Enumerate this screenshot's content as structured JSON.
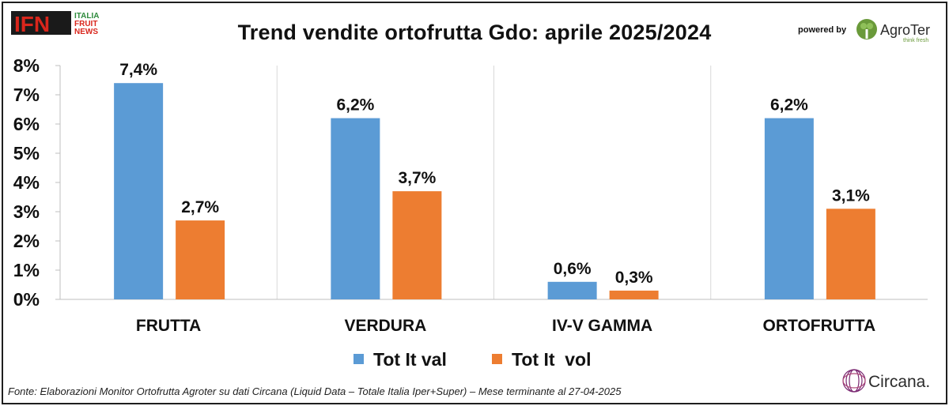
{
  "header": {
    "title": "Trend vendite ortofrutta Gdo: aprile 2025/2024",
    "powered_by": "powered by",
    "ifn_logo": {
      "letters": "IFN",
      "lines": [
        "ITALIA",
        "FRUIT",
        "NEWS"
      ]
    },
    "agroter_logo": {
      "name": "AgroTer",
      "tagline": "think fresh"
    }
  },
  "colors": {
    "val": "#5b9bd5",
    "vol": "#ed7d31",
    "grid": "#d9d9d9",
    "ifn_red": "#d9261c",
    "ifn_green": "#2e8b3d",
    "agroter_green": "#6a9a3a",
    "circana_purple": "#7b2a73"
  },
  "chart_data": {
    "type": "bar",
    "categories": [
      "FRUTTA",
      "VERDURA",
      "IV-V GAMMA",
      "ORTOFRUTTA"
    ],
    "series": [
      {
        "name": "Tot It val",
        "values": [
          7.4,
          6.2,
          0.6,
          6.2
        ],
        "labels": [
          "7,4%",
          "6,2%",
          "0,6%",
          "6,2%"
        ]
      },
      {
        "name": "Tot It  vol",
        "values": [
          2.7,
          3.7,
          0.3,
          3.1
        ],
        "labels": [
          "2,7%",
          "3,7%",
          "0,3%",
          "3,1%"
        ]
      }
    ],
    "ylim": [
      0,
      8
    ],
    "yticks": [
      0,
      1,
      2,
      3,
      4,
      5,
      6,
      7,
      8
    ],
    "ytick_labels": [
      "0%",
      "1%",
      "2%",
      "3%",
      "4%",
      "5%",
      "6%",
      "7%",
      "8%"
    ],
    "grid": "vertical category separators",
    "legend": "bottom-center"
  },
  "footer": {
    "source": "Fonte: Elaborazioni Monitor Ortofrutta Agroter su dati Circana (Liquid Data – Totale Italia Iper+Super) – Mese terminante al 27-04-2025",
    "circana_logo": "Circana."
  }
}
